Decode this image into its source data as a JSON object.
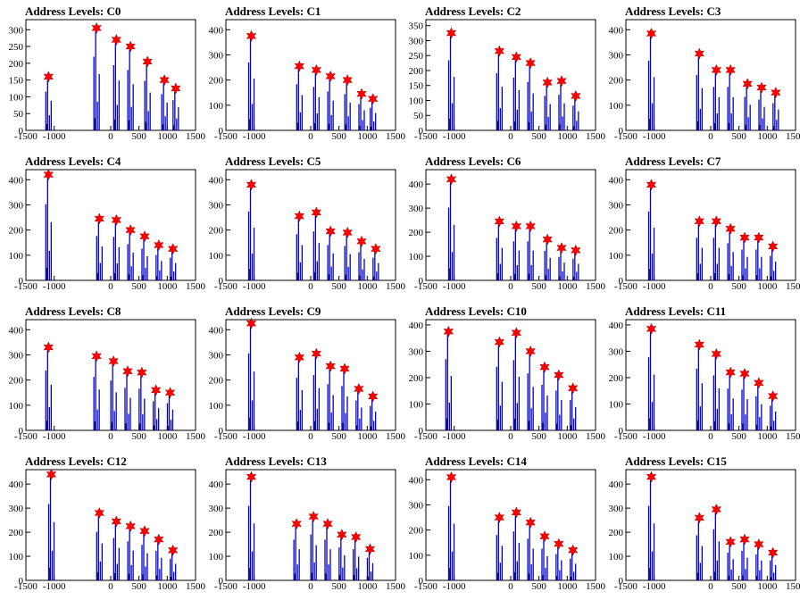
{
  "figure": {
    "title_prefix": "Address Levels: "
  },
  "axis_common": {
    "xlim": [
      -1500,
      1500
    ],
    "x_ticks": [
      -1500,
      -1000,
      0,
      500,
      1000,
      1500
    ],
    "x_tick_labels": [
      "-1500",
      "-1000",
      "0",
      "500",
      "1000",
      "1500"
    ]
  },
  "colors": {
    "histogram_line": "#0000cc",
    "peak_marker": "#ff0000",
    "axis": "#000000"
  },
  "marker": "red-star",
  "chart_data": [
    {
      "type": "bar",
      "title": "Address Levels: C0",
      "ylim": [
        0,
        330
      ],
      "y_ticks": [
        0,
        50,
        100,
        150,
        200,
        250,
        300
      ],
      "peaks": [
        {
          "x": -1100,
          "y": 160
        },
        {
          "x": -250,
          "y": 305
        },
        {
          "x": 100,
          "y": 270
        },
        {
          "x": 350,
          "y": 250
        },
        {
          "x": 650,
          "y": 205
        },
        {
          "x": 950,
          "y": 150
        },
        {
          "x": 1150,
          "y": 125
        }
      ]
    },
    {
      "type": "bar",
      "title": "Address Levels: C1",
      "ylim": [
        0,
        440
      ],
      "y_ticks": [
        0,
        100,
        200,
        300,
        400
      ],
      "peaks": [
        {
          "x": -1050,
          "y": 375
        },
        {
          "x": -200,
          "y": 255
        },
        {
          "x": 100,
          "y": 240
        },
        {
          "x": 350,
          "y": 215
        },
        {
          "x": 650,
          "y": 200
        },
        {
          "x": 900,
          "y": 145
        },
        {
          "x": 1100,
          "y": 125
        }
      ]
    },
    {
      "type": "bar",
      "title": "Address Levels: C2",
      "ylim": [
        0,
        370
      ],
      "y_ticks": [
        0,
        50,
        100,
        150,
        200,
        250,
        300,
        350
      ],
      "peaks": [
        {
          "x": -1050,
          "y": 325
        },
        {
          "x": -200,
          "y": 265
        },
        {
          "x": 100,
          "y": 245
        },
        {
          "x": 350,
          "y": 225
        },
        {
          "x": 650,
          "y": 160
        },
        {
          "x": 900,
          "y": 165
        },
        {
          "x": 1150,
          "y": 115
        }
      ]
    },
    {
      "type": "bar",
      "title": "Address Levels: C3",
      "ylim": [
        0,
        440
      ],
      "y_ticks": [
        0,
        100,
        200,
        300,
        400
      ],
      "peaks": [
        {
          "x": -1050,
          "y": 385
        },
        {
          "x": -200,
          "y": 305
        },
        {
          "x": 100,
          "y": 240
        },
        {
          "x": 350,
          "y": 240
        },
        {
          "x": 650,
          "y": 185
        },
        {
          "x": 900,
          "y": 170
        },
        {
          "x": 1150,
          "y": 150
        }
      ]
    },
    {
      "type": "bar",
      "title": "Address Levels: C4",
      "ylim": [
        0,
        440
      ],
      "y_ticks": [
        0,
        100,
        200,
        300,
        400
      ],
      "peaks": [
        {
          "x": -1100,
          "y": 420
        },
        {
          "x": -200,
          "y": 245
        },
        {
          "x": 100,
          "y": 240
        },
        {
          "x": 350,
          "y": 200
        },
        {
          "x": 600,
          "y": 175
        },
        {
          "x": 850,
          "y": 140
        },
        {
          "x": 1100,
          "y": 125
        }
      ]
    },
    {
      "type": "bar",
      "title": "Address Levels: C5",
      "ylim": [
        0,
        440
      ],
      "y_ticks": [
        0,
        100,
        200,
        300,
        400
      ],
      "peaks": [
        {
          "x": -1050,
          "y": 380
        },
        {
          "x": -200,
          "y": 255
        },
        {
          "x": 100,
          "y": 270
        },
        {
          "x": 350,
          "y": 195
        },
        {
          "x": 650,
          "y": 190
        },
        {
          "x": 900,
          "y": 155
        },
        {
          "x": 1150,
          "y": 125
        }
      ]
    },
    {
      "type": "bar",
      "title": "Address Levels: C6",
      "ylim": [
        0,
        460
      ],
      "y_ticks": [
        0,
        100,
        200,
        300,
        400
      ],
      "peaks": [
        {
          "x": -1050,
          "y": 420
        },
        {
          "x": -200,
          "y": 245
        },
        {
          "x": 100,
          "y": 225
        },
        {
          "x": 350,
          "y": 225
        },
        {
          "x": 650,
          "y": 170
        },
        {
          "x": 900,
          "y": 135
        },
        {
          "x": 1150,
          "y": 125
        }
      ]
    },
    {
      "type": "bar",
      "title": "Address Levels: C7",
      "ylim": [
        0,
        440
      ],
      "y_ticks": [
        0,
        100,
        200,
        300,
        400
      ],
      "peaks": [
        {
          "x": -1050,
          "y": 380
        },
        {
          "x": -200,
          "y": 235
        },
        {
          "x": 100,
          "y": 235
        },
        {
          "x": 350,
          "y": 205
        },
        {
          "x": 600,
          "y": 170
        },
        {
          "x": 850,
          "y": 170
        },
        {
          "x": 1100,
          "y": 135
        }
      ]
    },
    {
      "type": "bar",
      "title": "Address Levels: C8",
      "ylim": [
        0,
        440
      ],
      "y_ticks": [
        0,
        100,
        200,
        300,
        400
      ],
      "peaks": [
        {
          "x": -1100,
          "y": 330
        },
        {
          "x": -250,
          "y": 295
        },
        {
          "x": 50,
          "y": 275
        },
        {
          "x": 300,
          "y": 235
        },
        {
          "x": 550,
          "y": 230
        },
        {
          "x": 800,
          "y": 160
        },
        {
          "x": 1050,
          "y": 150
        }
      ]
    },
    {
      "type": "bar",
      "title": "Address Levels: C9",
      "ylim": [
        0,
        440
      ],
      "y_ticks": [
        0,
        100,
        200,
        300,
        400
      ],
      "peaks": [
        {
          "x": -1050,
          "y": 425
        },
        {
          "x": -200,
          "y": 290
        },
        {
          "x": 100,
          "y": 305
        },
        {
          "x": 350,
          "y": 255
        },
        {
          "x": 600,
          "y": 245
        },
        {
          "x": 850,
          "y": 165
        },
        {
          "x": 1100,
          "y": 135
        }
      ]
    },
    {
      "type": "bar",
      "title": "Address Levels: C10",
      "ylim": [
        0,
        420
      ],
      "y_ticks": [
        0,
        100,
        200,
        300,
        400
      ],
      "peaks": [
        {
          "x": -1100,
          "y": 375
        },
        {
          "x": -200,
          "y": 335
        },
        {
          "x": 100,
          "y": 370
        },
        {
          "x": 350,
          "y": 300
        },
        {
          "x": 600,
          "y": 240
        },
        {
          "x": 850,
          "y": 210
        },
        {
          "x": 1100,
          "y": 160
        }
      ]
    },
    {
      "type": "bar",
      "title": "Address Levels: C11",
      "ylim": [
        0,
        420
      ],
      "y_ticks": [
        0,
        100,
        200,
        300,
        400
      ],
      "peaks": [
        {
          "x": -1050,
          "y": 385
        },
        {
          "x": -200,
          "y": 325
        },
        {
          "x": 100,
          "y": 290
        },
        {
          "x": 350,
          "y": 220
        },
        {
          "x": 600,
          "y": 215
        },
        {
          "x": 850,
          "y": 180
        },
        {
          "x": 1100,
          "y": 130
        }
      ]
    },
    {
      "type": "bar",
      "title": "Address Levels: C12",
      "ylim": [
        0,
        460
      ],
      "y_ticks": [
        0,
        100,
        200,
        300,
        400
      ],
      "peaks": [
        {
          "x": -1050,
          "y": 440
        },
        {
          "x": -200,
          "y": 280
        },
        {
          "x": 100,
          "y": 245
        },
        {
          "x": 350,
          "y": 225
        },
        {
          "x": 600,
          "y": 205
        },
        {
          "x": 850,
          "y": 170
        },
        {
          "x": 1100,
          "y": 125
        }
      ]
    },
    {
      "type": "bar",
      "title": "Address Levels: C13",
      "ylim": [
        0,
        460
      ],
      "y_ticks": [
        0,
        100,
        200,
        300,
        400
      ],
      "peaks": [
        {
          "x": -1050,
          "y": 430
        },
        {
          "x": -250,
          "y": 235
        },
        {
          "x": 50,
          "y": 265
        },
        {
          "x": 300,
          "y": 235
        },
        {
          "x": 550,
          "y": 190
        },
        {
          "x": 800,
          "y": 180
        },
        {
          "x": 1050,
          "y": 130
        }
      ]
    },
    {
      "type": "bar",
      "title": "Address Levels: C14",
      "ylim": [
        0,
        440
      ],
      "y_ticks": [
        0,
        100,
        200,
        300,
        400
      ],
      "peaks": [
        {
          "x": -1050,
          "y": 410
        },
        {
          "x": -200,
          "y": 250
        },
        {
          "x": 100,
          "y": 270
        },
        {
          "x": 350,
          "y": 230
        },
        {
          "x": 600,
          "y": 175
        },
        {
          "x": 850,
          "y": 145
        },
        {
          "x": 1100,
          "y": 120
        }
      ]
    },
    {
      "type": "bar",
      "title": "Address Levels: C15",
      "ylim": [
        0,
        460
      ],
      "y_ticks": [
        0,
        100,
        200,
        300,
        400
      ],
      "peaks": [
        {
          "x": -1050,
          "y": 430
        },
        {
          "x": -200,
          "y": 260
        },
        {
          "x": 100,
          "y": 295
        },
        {
          "x": 350,
          "y": 160
        },
        {
          "x": 600,
          "y": 170
        },
        {
          "x": 850,
          "y": 150
        },
        {
          "x": 1100,
          "y": 115
        }
      ]
    }
  ]
}
